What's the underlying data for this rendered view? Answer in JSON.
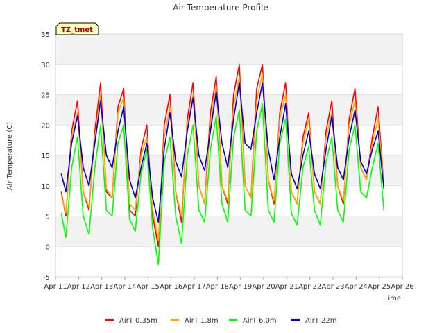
{
  "chart_data": {
    "type": "line",
    "title": "Air Temperature Profile",
    "xlabel": "Time",
    "ylabel": "Air Temperature (C)",
    "ylim": [
      -5,
      35
    ],
    "yticks": [
      -5,
      0,
      5,
      10,
      15,
      20,
      25,
      30,
      35
    ],
    "xlim": [
      11,
      26
    ],
    "xticks": [
      {
        "pos": 11,
        "label": "Apr 11"
      },
      {
        "pos": 12,
        "label": "Apr 12"
      },
      {
        "pos": 13,
        "label": "Apr 13"
      },
      {
        "pos": 14,
        "label": "Apr 14"
      },
      {
        "pos": 15,
        "label": "Apr 15"
      },
      {
        "pos": 16,
        "label": "Apr 16"
      },
      {
        "pos": 17,
        "label": "Apr 17"
      },
      {
        "pos": 18,
        "label": "Apr 18"
      },
      {
        "pos": 19,
        "label": "Apr 19"
      },
      {
        "pos": 20,
        "label": "Apr 20"
      },
      {
        "pos": 21,
        "label": "Apr 21"
      },
      {
        "pos": 22,
        "label": "Apr 22"
      },
      {
        "pos": 23,
        "label": "Apr 23"
      },
      {
        "pos": 24,
        "label": "Apr 24"
      },
      {
        "pos": 25,
        "label": "Apr 25"
      },
      {
        "pos": 26,
        "label": "Apr 26"
      }
    ],
    "grid": true,
    "legend_position": "bottom",
    "tag_label": "TZ_tmet",
    "series": [
      {
        "name": "AirT 0.35m",
        "color": "#ff0000",
        "x": [
          11.25,
          11.45,
          11.7,
          11.95,
          12.2,
          12.45,
          12.7,
          12.95,
          13.2,
          13.45,
          13.7,
          13.95,
          14.2,
          14.45,
          14.7,
          14.95,
          15.2,
          15.45,
          15.7,
          15.95,
          16.2,
          16.45,
          16.7,
          16.95,
          17.2,
          17.45,
          17.7,
          17.95,
          18.2,
          18.45,
          18.7,
          18.95,
          19.2,
          19.45,
          19.7,
          19.95,
          20.2,
          20.45,
          20.7,
          20.95,
          21.2,
          21.45,
          21.7,
          21.95,
          22.2,
          22.45,
          22.7,
          22.95,
          23.2,
          23.45,
          23.7,
          23.95,
          24.2,
          24.45,
          24.7,
          24.95,
          25.2
        ],
        "y": [
          9,
          5,
          19,
          24,
          9,
          6,
          19,
          27,
          9,
          8,
          23,
          26,
          6,
          5,
          16,
          20,
          5,
          0,
          20,
          25,
          9,
          4,
          21,
          27,
          10,
          7,
          22,
          28,
          10,
          7,
          25,
          30,
          10,
          8,
          26,
          30,
          11,
          7,
          22,
          27,
          9,
          7,
          18,
          22,
          9,
          7,
          19,
          24,
          10,
          7,
          21,
          26,
          13,
          11,
          18,
          23,
          10
        ]
      },
      {
        "name": "AirT 1.8m",
        "color": "#ffa500",
        "x": [
          11.25,
          11.45,
          11.7,
          11.95,
          12.2,
          12.45,
          12.7,
          12.95,
          13.2,
          13.45,
          13.7,
          13.95,
          14.2,
          14.45,
          14.7,
          14.95,
          15.2,
          15.45,
          15.7,
          15.95,
          16.2,
          16.45,
          16.7,
          16.95,
          17.2,
          17.45,
          17.7,
          17.95,
          18.2,
          18.45,
          18.7,
          18.95,
          19.2,
          19.45,
          19.7,
          19.95,
          20.2,
          20.45,
          20.7,
          20.95,
          21.2,
          21.45,
          21.7,
          21.95,
          22.2,
          22.45,
          22.7,
          22.95,
          23.2,
          23.45,
          23.7,
          23.95,
          24.2,
          24.45,
          24.7,
          24.95,
          25.2
        ],
        "y": [
          8.5,
          5.5,
          18,
          22,
          9,
          6.5,
          18,
          25,
          9.5,
          8,
          22,
          24.5,
          7,
          6,
          15,
          18,
          6,
          1,
          18,
          23,
          9,
          5,
          20,
          25,
          10,
          7,
          20,
          26.5,
          10,
          7.5,
          23,
          28,
          10,
          8,
          24,
          28.5,
          11,
          7.5,
          21,
          25,
          9,
          7,
          17,
          21,
          9,
          7,
          18,
          22,
          10,
          7.5,
          20,
          24,
          13,
          11,
          17,
          21,
          10
        ]
      },
      {
        "name": "AirT 6.0m",
        "color": "#00ff00",
        "x": [
          11.25,
          11.45,
          11.7,
          11.95,
          12.2,
          12.45,
          12.7,
          12.95,
          13.2,
          13.45,
          13.7,
          13.95,
          14.2,
          14.45,
          14.7,
          14.95,
          15.2,
          15.45,
          15.7,
          15.95,
          16.2,
          16.45,
          16.7,
          16.95,
          17.2,
          17.45,
          17.7,
          17.95,
          18.2,
          18.45,
          18.7,
          18.95,
          19.2,
          19.45,
          19.7,
          19.95,
          20.2,
          20.45,
          20.7,
          20.95,
          21.2,
          21.45,
          21.7,
          21.95,
          22.2,
          22.45,
          22.7,
          22.95,
          23.2,
          23.45,
          23.7,
          23.95,
          24.2,
          24.45,
          24.7,
          24.95,
          25.2
        ],
        "y": [
          5.5,
          1.5,
          13,
          18,
          5,
          2,
          13,
          20,
          6,
          5,
          17,
          20,
          4.5,
          2.5,
          12,
          16,
          3,
          -3,
          14,
          18,
          5,
          0.5,
          15,
          20,
          6,
          4,
          16,
          21.5,
          7,
          4,
          18,
          22.5,
          6,
          5,
          19,
          23.5,
          6,
          4,
          17,
          21,
          5.5,
          3.5,
          13,
          16.5,
          6,
          3.5,
          14,
          18,
          6,
          4,
          16,
          20,
          9,
          8,
          13,
          17,
          6
        ]
      },
      {
        "name": "AirT 22m",
        "color": "#0000cc",
        "x": [
          11.25,
          11.45,
          11.7,
          11.95,
          12.2,
          12.45,
          12.7,
          12.95,
          13.2,
          13.45,
          13.7,
          13.95,
          14.2,
          14.45,
          14.7,
          14.95,
          15.2,
          15.45,
          15.7,
          15.95,
          16.2,
          16.45,
          16.7,
          16.95,
          17.2,
          17.45,
          17.7,
          17.95,
          18.2,
          18.45,
          18.7,
          18.95,
          19.2,
          19.45,
          19.7,
          19.95,
          20.2,
          20.45,
          20.7,
          20.95,
          21.2,
          21.45,
          21.7,
          21.95,
          22.2,
          22.45,
          22.7,
          22.95,
          23.2,
          23.45,
          23.7,
          23.95,
          24.2,
          24.45,
          24.7,
          24.95,
          25.2
        ],
        "y": [
          12,
          9,
          17,
          21.5,
          13,
          10,
          17,
          24,
          15,
          13,
          19,
          23,
          11,
          8,
          13,
          17,
          8,
          4,
          16,
          22,
          14,
          11.5,
          19,
          24.5,
          15,
          12.5,
          19,
          25.5,
          17,
          13,
          21,
          27,
          17,
          16,
          22,
          27,
          16,
          11,
          18,
          23.5,
          12,
          9.5,
          15,
          19,
          12,
          9.5,
          16,
          21.5,
          13,
          11,
          18,
          22.5,
          14,
          12,
          16,
          19,
          9.5
        ]
      }
    ]
  }
}
